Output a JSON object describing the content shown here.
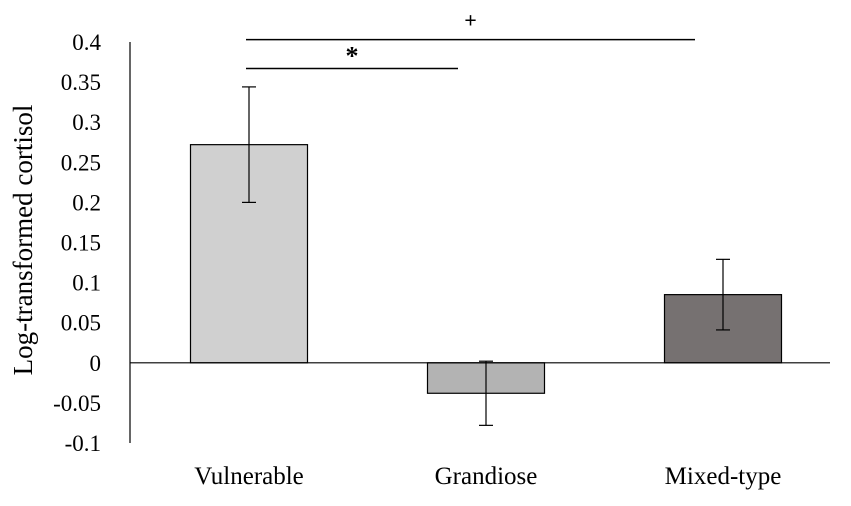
{
  "chart_data": {
    "type": "bar",
    "title": "",
    "xlabel": "",
    "ylabel": "Log-transformed cortisol",
    "categories": [
      "Vulnerable",
      "Grandiose",
      "Mixed-type"
    ],
    "values": [
      0.272,
      -0.038,
      0.085
    ],
    "error_bars": [
      0.072,
      0.04,
      0.044
    ],
    "bar_colors": [
      "#d0d0d0",
      "#b3b3b3",
      "#767171"
    ],
    "ylim": [
      -0.1,
      0.4
    ],
    "yticks": [
      -0.1,
      -0.05,
      0,
      0.05,
      0.1,
      0.15,
      0.2,
      0.25,
      0.3,
      0.35,
      0.4
    ],
    "ytick_labels": [
      "-0.1",
      "-0.05",
      "0",
      "0.05",
      "0.1",
      "0.15",
      "0.2",
      "0.25",
      "0.3",
      "0.35",
      "0.4"
    ],
    "grid": false,
    "legend": "none",
    "annotations": [
      {
        "label": "+",
        "from": "Vulnerable",
        "to": "Mixed-type",
        "y": 0.403
      },
      {
        "label": "*",
        "from": "Vulnerable",
        "to": "Grandiose",
        "y": 0.367
      }
    ]
  }
}
